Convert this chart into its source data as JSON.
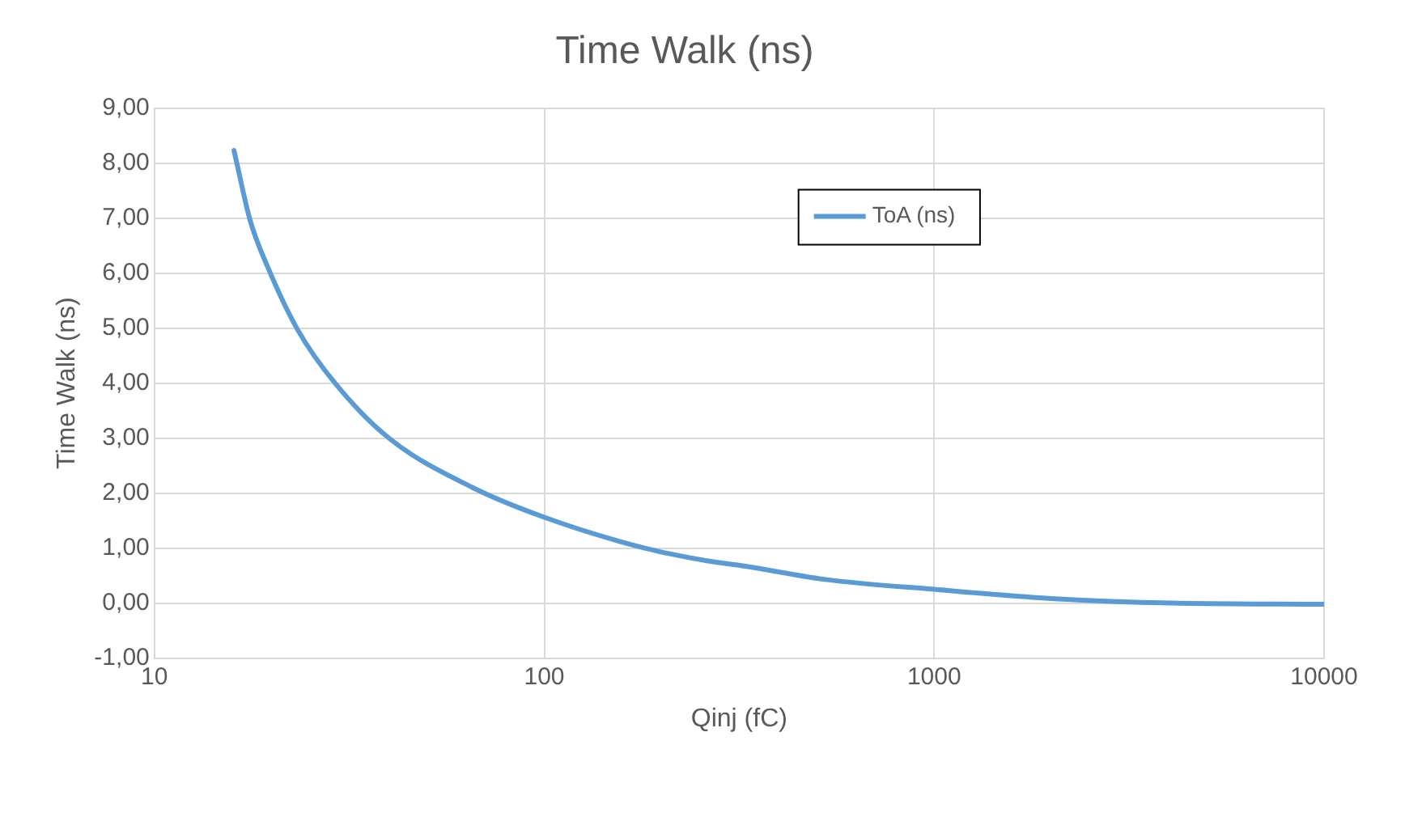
{
  "chart_data": {
    "type": "line",
    "title": "Time Walk (ns)",
    "xlabel": "Qinj (fC)",
    "ylabel": "Time Walk (ns)",
    "x": [
      16,
      17.6,
      19.5,
      23.3,
      29.2,
      40.1,
      65.5,
      100,
      181,
      261,
      328,
      525,
      1000,
      2040,
      4070,
      10000
    ],
    "series": [
      {
        "name": "ToA (ns)",
        "color": "#5b9bd5",
        "values": [
          8.23,
          6.96,
          6.12,
          4.97,
          3.98,
          2.99,
          2.1,
          1.56,
          1.0,
          0.77,
          0.67,
          0.43,
          0.25,
          0.08,
          0.0,
          -0.02
        ]
      }
    ],
    "log": "x",
    "xlim": [
      10,
      10000
    ],
    "xticks": [
      10,
      100,
      1000,
      10000
    ],
    "ylim": [
      -1,
      9
    ],
    "yticks": [
      {
        "value": -1,
        "label": "-1,00"
      },
      {
        "value": 0,
        "label": "0,00"
      },
      {
        "value": 1,
        "label": "1,00"
      },
      {
        "value": 2,
        "label": "2,00"
      },
      {
        "value": 3,
        "label": "3,00"
      },
      {
        "value": 4,
        "label": "4,00"
      },
      {
        "value": 5,
        "label": "5,00"
      },
      {
        "value": 6,
        "label": "6,00"
      },
      {
        "value": 7,
        "label": "7,00"
      },
      {
        "value": 8,
        "label": "8,00"
      },
      {
        "value": 9,
        "label": "9,00"
      }
    ],
    "grid": true,
    "legend": "top right",
    "marker": "none",
    "line_style": "solid"
  }
}
